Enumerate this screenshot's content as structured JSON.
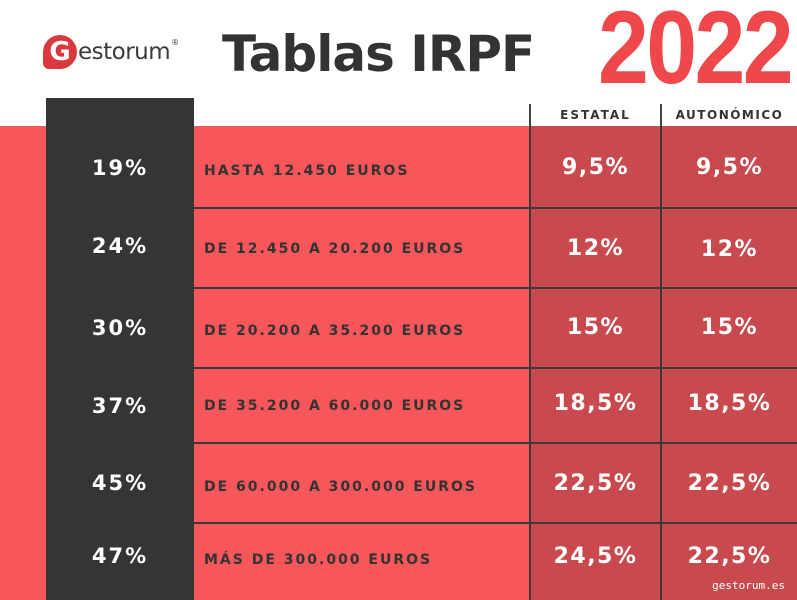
{
  "brand": {
    "logo_letter": "G",
    "logo_text": "estorum",
    "logo_reg": "®",
    "brand_color": "#d9393c"
  },
  "header": {
    "title": "Tablas IRPF",
    "year": "2022"
  },
  "columns": {
    "estatal": "ESTATAL",
    "autonomico": "AUTONÓMICO"
  },
  "colors": {
    "band": "#f7575a",
    "dark_column": "#353535",
    "value_columns": "#c94a4e",
    "year": "#f0474a"
  },
  "rows": [
    {
      "rate": "19%",
      "range": "HASTA 12.450 EUROS",
      "estatal": "9,5%",
      "autonomico": "9,5%"
    },
    {
      "rate": "24%",
      "range": "DE 12.450 A 20.200 EUROS",
      "estatal": "12%",
      "autonomico": "12%"
    },
    {
      "rate": "30%",
      "range": "DE 20.200 A 35.200 EUROS",
      "estatal": "15%",
      "autonomico": "15%"
    },
    {
      "rate": "37%",
      "range": "DE 35.200 A 60.000 EUROS",
      "estatal": "18,5%",
      "autonomico": "18,5%"
    },
    {
      "rate": "45%",
      "range": "DE 60.000 A 300.000 EUROS",
      "estatal": "22,5%",
      "autonomico": "22,5%"
    },
    {
      "rate": "47%",
      "range": "MÁS DE 300.000 EUROS",
      "estatal": "24,5%",
      "autonomico": "22,5%"
    }
  ],
  "footer": {
    "url": "gestorum.es"
  }
}
